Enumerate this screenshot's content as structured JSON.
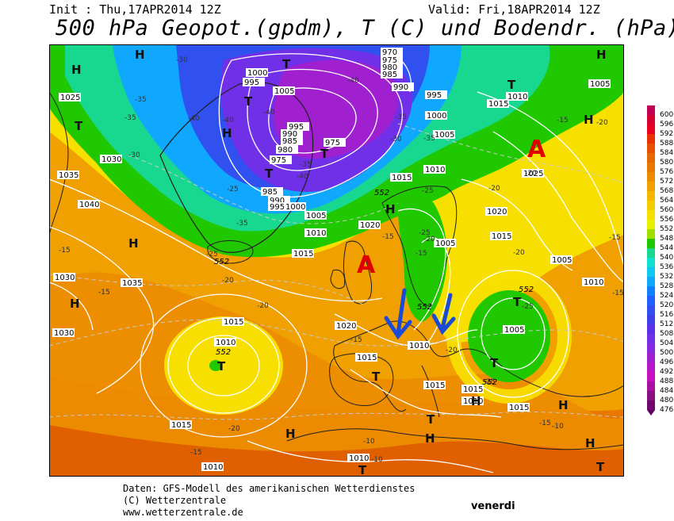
{
  "header": {
    "init": "Init : Thu,17APR2014 12Z",
    "valid": "Valid: Fri,18APR2014 12Z",
    "title": "500 hPa Geopot.(gpdm), T (C) und Bodendr. (hPa)"
  },
  "map": {
    "pressure_centers": {
      "high": "H",
      "low": "T",
      "anticyclone_marker": "A"
    },
    "isobar_labels": [
      "1025",
      "1030",
      "1035",
      "1040",
      "1030",
      "1035",
      "1030",
      "1015",
      "1010",
      "1010",
      "1015",
      "1015",
      "1010",
      "1020",
      "1010",
      "1015",
      "1020",
      "1010",
      "1005",
      "1005",
      "1015",
      "1010",
      "1025",
      "1020",
      "1015",
      "1005",
      "1010",
      "1005",
      "1015",
      "1015",
      "1010",
      "1015",
      "1015",
      "1010",
      "1000",
      "995",
      "1005",
      "995",
      "990",
      "985",
      "980",
      "975",
      "970",
      "975",
      "980",
      "985",
      "990",
      "995",
      "1000",
      "1005",
      "985",
      "990",
      "995",
      "1000",
      "1005",
      "975"
    ],
    "temp_labels": [
      "-35",
      "-40",
      "-40",
      "-35",
      "-30",
      "-25",
      "-25",
      "-35",
      "-35",
      "-30",
      "-25",
      "-20",
      "-15",
      "-20",
      "-15",
      "-20",
      "-15",
      "-15",
      "-20",
      "-20",
      "-25",
      "-20",
      "-15",
      "-15",
      "-10",
      "-25",
      "-20",
      "-10",
      "-15",
      "-15",
      "-20",
      "-25",
      "-15",
      "-20",
      "-15",
      "-10",
      "-30",
      "-40",
      "-35",
      "-40",
      "-35",
      "-40"
    ],
    "gpdm_labels": [
      "552",
      "552",
      "552",
      "552",
      "552",
      "552"
    ],
    "arrows": [
      "blue-arrow-left",
      "blue-arrow-right"
    ]
  },
  "legend": {
    "values": [
      "600",
      "596",
      "592",
      "588",
      "584",
      "580",
      "576",
      "572",
      "568",
      "564",
      "560",
      "556",
      "552",
      "548",
      "544",
      "540",
      "536",
      "532",
      "528",
      "524",
      "520",
      "516",
      "512",
      "508",
      "504",
      "500",
      "496",
      "492",
      "488",
      "484",
      "480",
      "476"
    ]
  },
  "footer": {
    "line1": "Daten: GFS-Modell des amerikanischen Wetterdienstes",
    "line2": "(C) Wetterzentrale",
    "line3": "www.wetterzentrale.de",
    "day": "venerdi"
  }
}
